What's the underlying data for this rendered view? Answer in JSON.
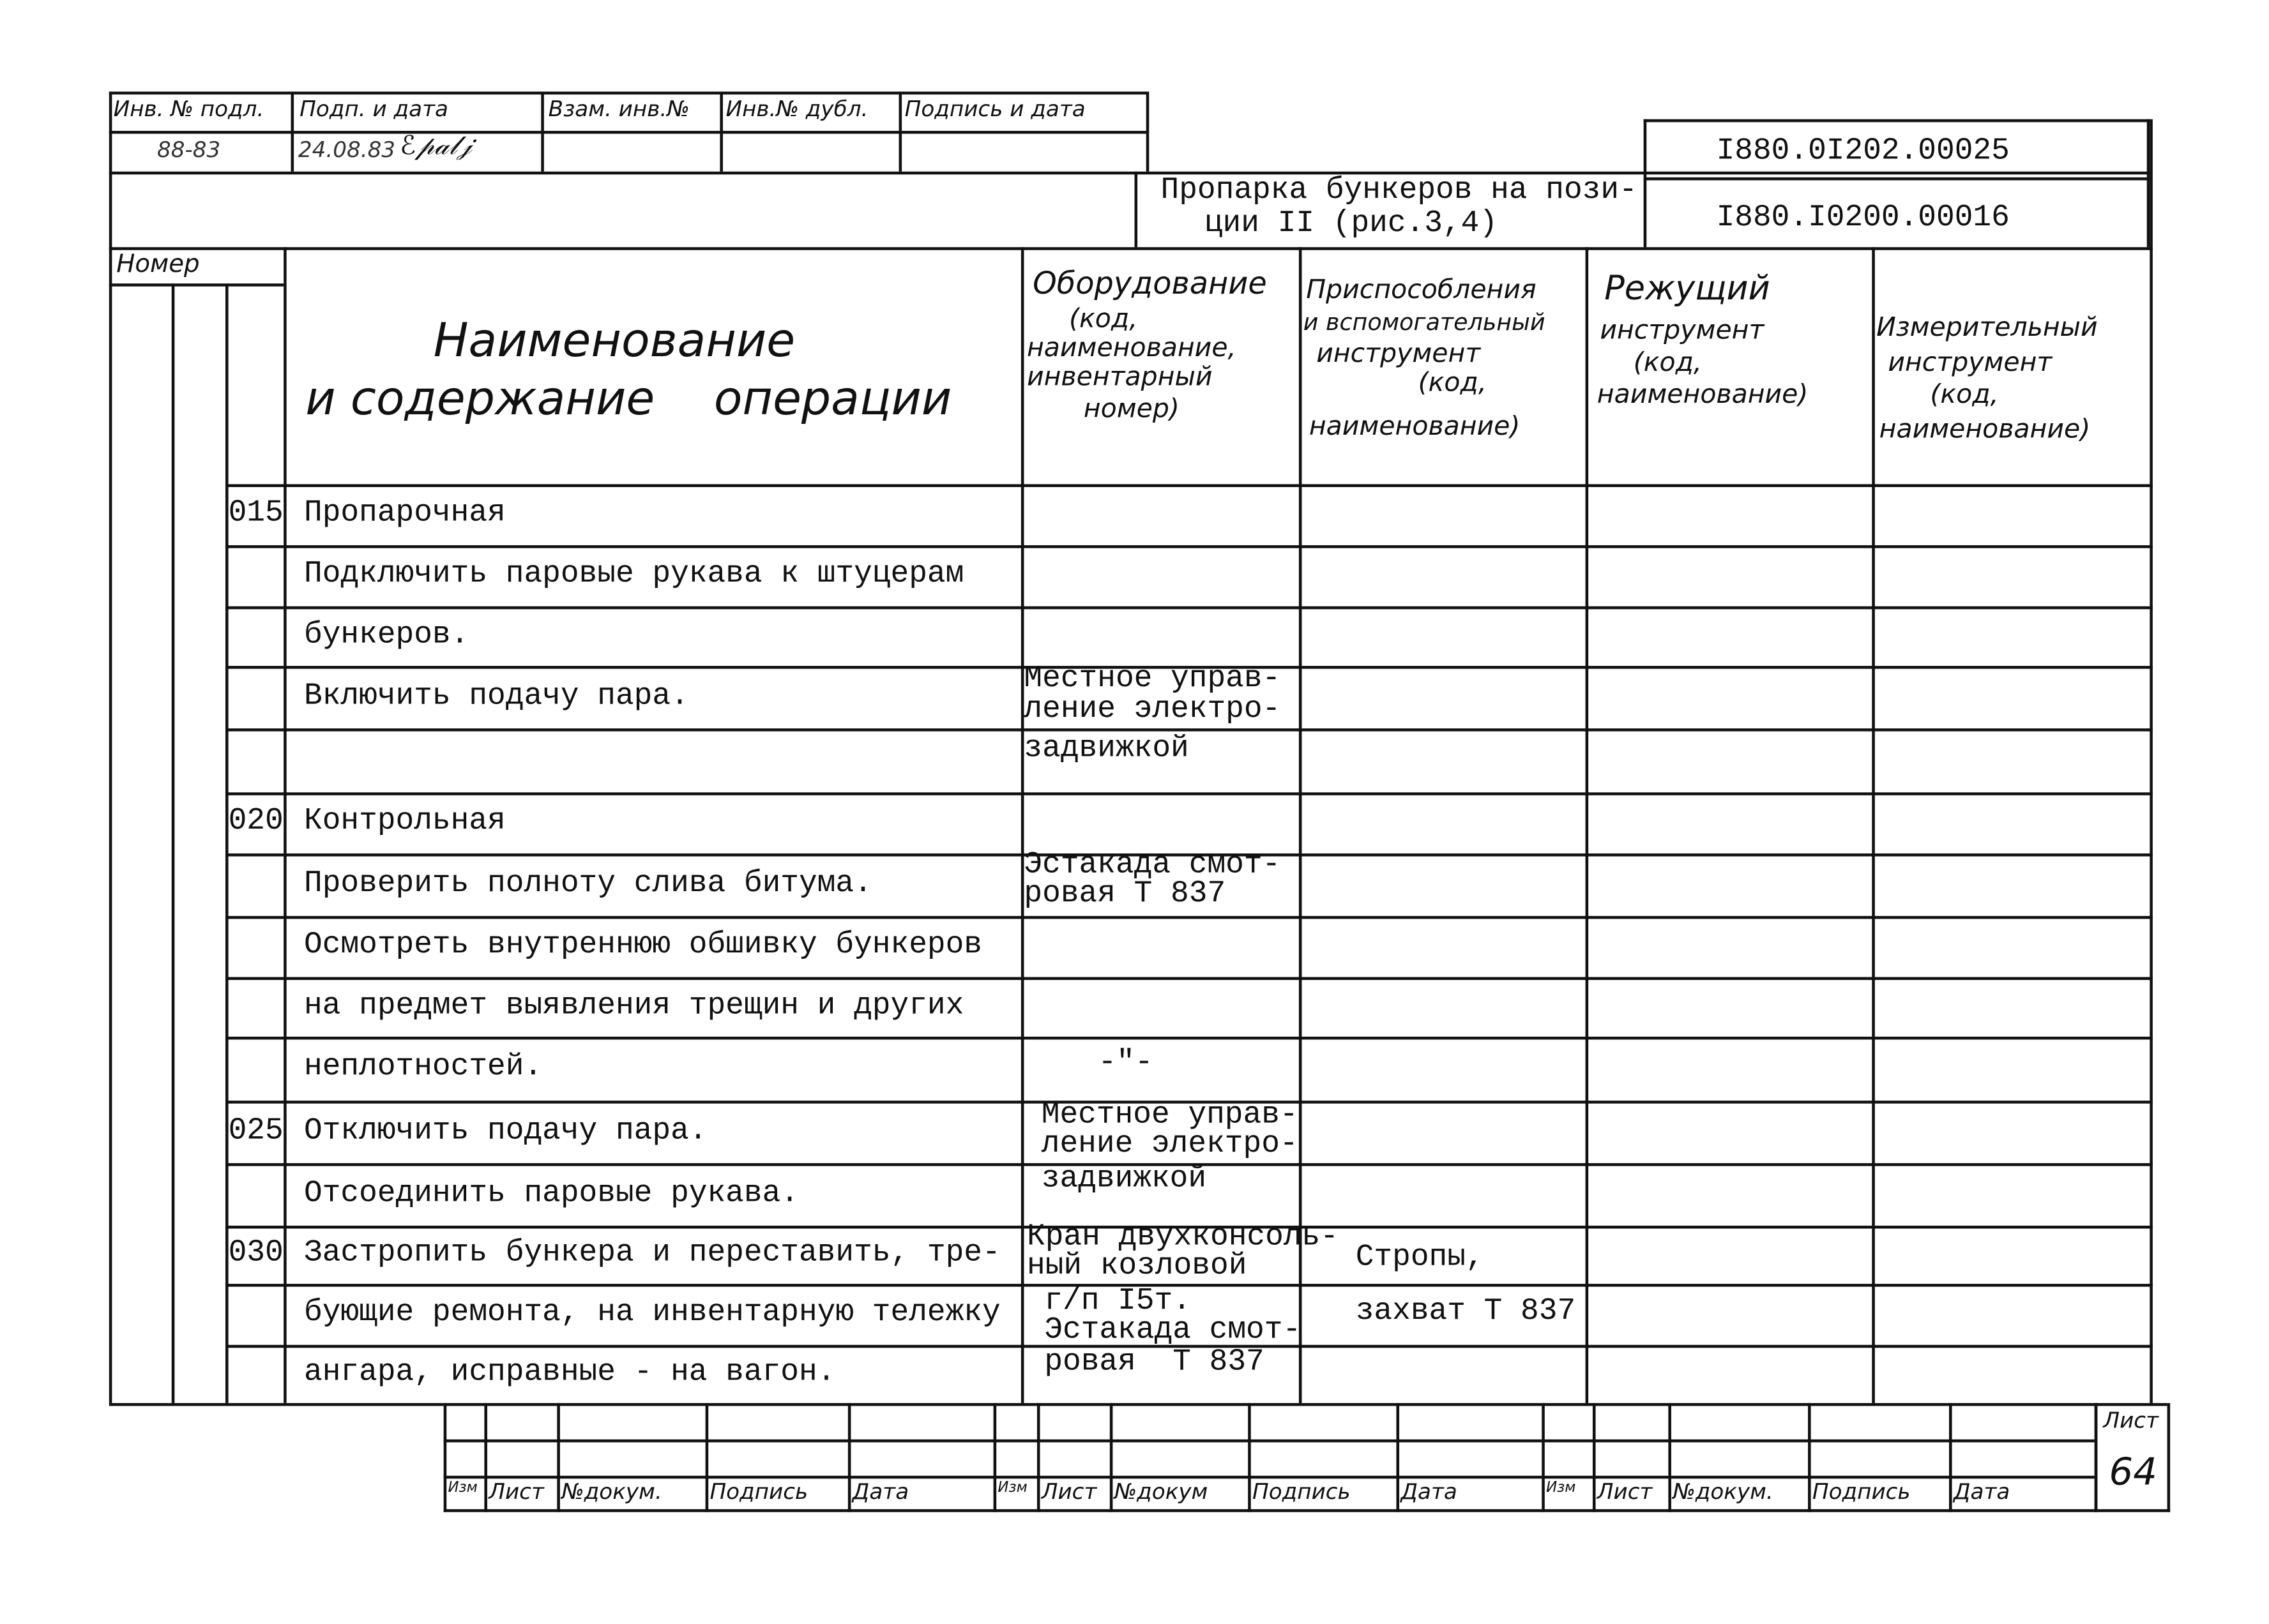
{
  "stamp_top": {
    "headers": [
      "Инв. № подл.",
      "Подп. и дата",
      "Взам. инв.№",
      "Инв.№ дубл.",
      "Подпись и дата"
    ],
    "values": [
      "88-83",
      "24.08.83"
    ]
  },
  "title": {
    "operation_title": [
      "Пропарка бункеров на пози-",
      "ции II (рис.3,4)"
    ],
    "doc_code_1": "I880.0I202.00025",
    "doc_code_2": "I880.I0200.00016"
  },
  "columns": {
    "number": "Номер",
    "name": [
      "Наименование",
      "и содержание    операции"
    ],
    "equipment": [
      "Оборудование",
      "(код,",
      "наименование,",
      "инвентарный",
      "номер)"
    ],
    "fixtures": [
      "Приспособления",
      "и вспомогательный",
      "инструмент",
      "(код,",
      "наименование)"
    ],
    "cutting": [
      "Режущий",
      "инструмент",
      "(код,",
      "наименование)"
    ],
    "measuring": [
      "Измерительный",
      "инструмент",
      "(код,",
      "наименование)"
    ]
  },
  "rows": [
    {
      "num": "015",
      "text": "Пропарочная"
    },
    {
      "num": "",
      "text": "Подключить паровые рукава к штуцерам"
    },
    {
      "num": "",
      "text": "бункеров."
    },
    {
      "num": "",
      "text": "Включить подачу пара."
    },
    {
      "num": "",
      "text": ""
    },
    {
      "num": "020",
      "text": "Контрольная"
    },
    {
      "num": "",
      "text": "Проверить полноту слива битума."
    },
    {
      "num": "",
      "text": "Осмотреть внутреннюю обшивку бункеров"
    },
    {
      "num": "",
      "text": "на предмет выявления трещин и других"
    },
    {
      "num": "",
      "text": "неплотностей."
    },
    {
      "num": "025",
      "text": "Отключить подачу пара."
    },
    {
      "num": "",
      "text": "Отсоединить паровые рукава."
    },
    {
      "num": "030",
      "text": "Застропить бункера и переставить, тре-"
    },
    {
      "num": "",
      "text": "бующие ремонта, на инвентарную тележку"
    },
    {
      "num": "",
      "text": "ангара, исправные - на вагон."
    }
  ],
  "equipment_notes": [
    [
      "Местное управ-",
      "ление электро-",
      "задвижкой"
    ],
    [
      "Эстакада смот-",
      "ровая Т 837"
    ],
    [
      "-\"-"
    ],
    [
      "Местное управ-",
      "ление электро-",
      "задвижкой"
    ],
    [
      "Кран двухконсоль-",
      "ный козловой",
      "г/п I5т.",
      "Эстакада смот-",
      "ровая  Т 837"
    ]
  ],
  "fixture_notes": [
    "Стропы,",
    "захват Т 837"
  ],
  "stamp_bottom": {
    "labels": [
      "Изм",
      "Лист",
      "№докум.",
      "Подпись",
      "Дата",
      "Изм",
      "Лист",
      "№докум",
      "Подпись",
      "Дата",
      "Изм",
      "Лист",
      "№докум.",
      "Подпись",
      "Дата"
    ],
    "sheet_label": "Лист",
    "sheet_number": "64"
  }
}
